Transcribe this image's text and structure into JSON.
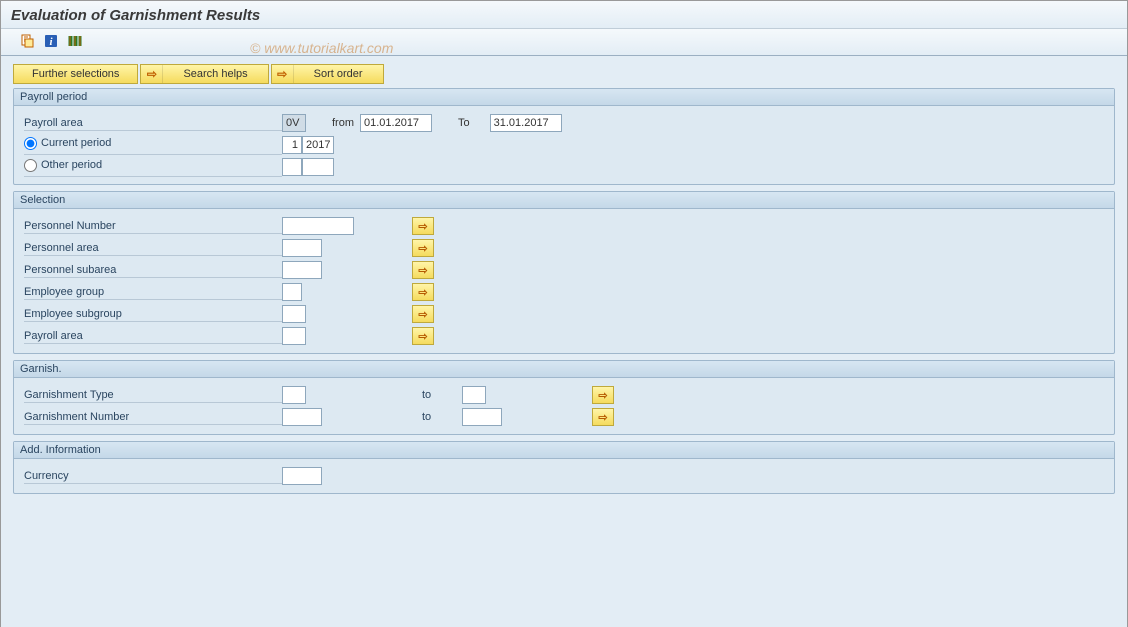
{
  "title": "Evaluation of Garnishment Results",
  "watermark": "© www.tutorialkart.com",
  "actions": {
    "further_selections": "Further selections",
    "search_helps": "Search helps",
    "sort_order": "Sort order"
  },
  "payroll_period": {
    "title": "Payroll period",
    "area_label": "Payroll area",
    "area_value": "0V",
    "from_label": "from",
    "from_value": "01.01.2017",
    "to_label": "To",
    "to_value": "31.01.2017",
    "current_label": "Current period",
    "current_num": "1",
    "current_year": "2017",
    "other_label": "Other period",
    "other_num": "",
    "other_year": ""
  },
  "selection": {
    "title": "Selection",
    "rows": [
      {
        "label": "Personnel Number",
        "width": "w72",
        "value": ""
      },
      {
        "label": "Personnel area",
        "width": "w40",
        "value": ""
      },
      {
        "label": "Personnel subarea",
        "width": "w40",
        "value": ""
      },
      {
        "label": "Employee group",
        "width": "w20",
        "value": ""
      },
      {
        "label": "Employee subgroup",
        "width": "w24",
        "value": ""
      },
      {
        "label": "Payroll area",
        "width": "w24",
        "value": ""
      }
    ]
  },
  "garnish": {
    "title": "Garnish.",
    "to_label": "to",
    "rows": [
      {
        "label": "Garnishment Type",
        "from_w": "w24",
        "to_w": "w24",
        "from": "",
        "to": ""
      },
      {
        "label": "Garnishment Number",
        "from_w": "w40",
        "to_w": "w40",
        "from": "",
        "to": ""
      }
    ]
  },
  "add_info": {
    "title": "Add. Information",
    "currency_label": "Currency",
    "currency_value": ""
  },
  "colors": {
    "page_bg": "#e3edf5",
    "group_border": "#9fb7cc",
    "label_text": "#2a4560",
    "button_grad_top": "#fff5a8",
    "button_grad_bot": "#f5db5e",
    "arrow_color": "#c06000"
  }
}
